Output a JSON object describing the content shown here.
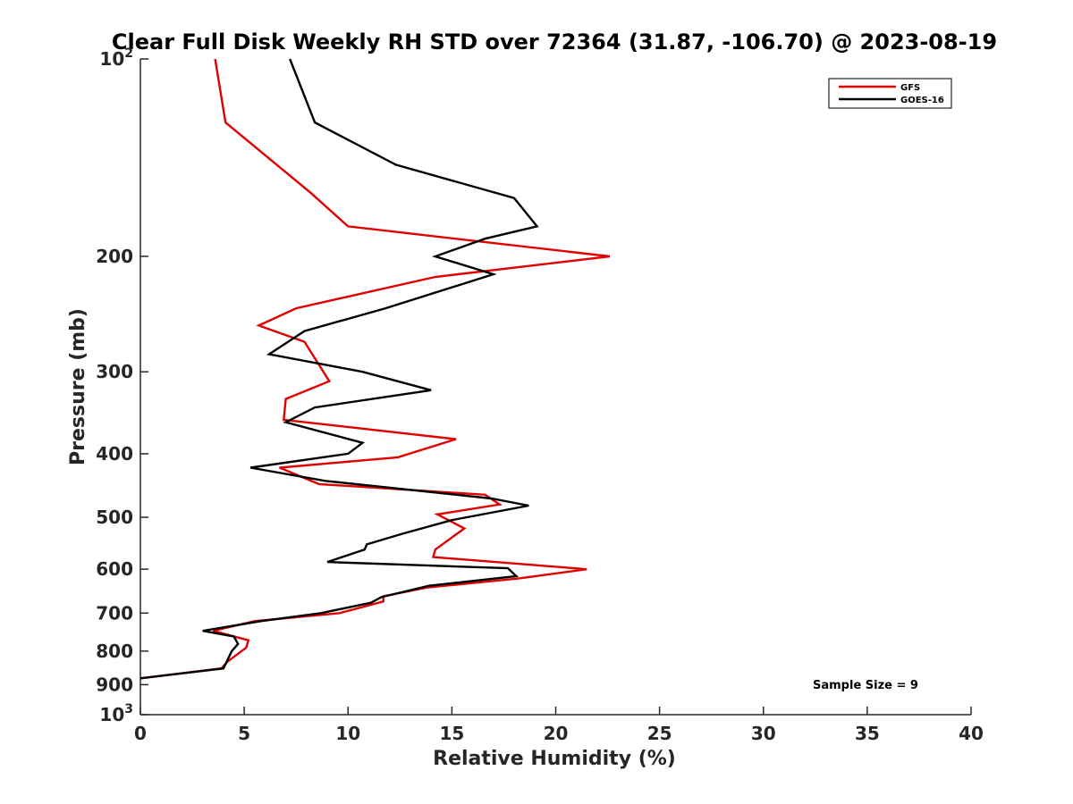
{
  "chart_data": {
    "type": "line",
    "title": "Clear Full Disk Weekly RH STD over 72364 (31.87, -106.70) @ 2023-08-19",
    "xlabel": "Relative Humidity (%)",
    "ylabel": "Pressure (mb)",
    "xlim": [
      0,
      40
    ],
    "ylim": [
      100,
      1000
    ],
    "y_scale": "log",
    "y_reversed": true,
    "x_ticks": [
      "0",
      "5",
      "10",
      "15",
      "20",
      "25",
      "30",
      "35",
      "40"
    ],
    "y_ticks": [
      {
        "value": 100,
        "base": "10",
        "exp": "2"
      },
      {
        "value": 200,
        "label": "200"
      },
      {
        "value": 300,
        "label": "300"
      },
      {
        "value": 400,
        "label": "400"
      },
      {
        "value": 500,
        "label": "500"
      },
      {
        "value": 600,
        "label": "600"
      },
      {
        "value": 700,
        "label": "700"
      },
      {
        "value": 800,
        "label": "800"
      },
      {
        "value": 900,
        "label": "900"
      },
      {
        "value": 1000,
        "base": "10",
        "exp": "3"
      }
    ],
    "legend_position": "top-right",
    "annotation": "Sample Size = 9",
    "series": [
      {
        "name": "GFS",
        "color": "#e00000",
        "points": [
          [
            3.6,
            100
          ],
          [
            4.1,
            125
          ],
          [
            8.2,
            160
          ],
          [
            10.0,
            180
          ],
          [
            22.6,
            200
          ],
          [
            14.2,
            215
          ],
          [
            7.5,
            240
          ],
          [
            5.7,
            255
          ],
          [
            7.9,
            270
          ],
          [
            9.1,
            310
          ],
          [
            7.0,
            330
          ],
          [
            6.9,
            355
          ],
          [
            15.2,
            380
          ],
          [
            12.4,
            405
          ],
          [
            6.7,
            420
          ],
          [
            8.6,
            445
          ],
          [
            16.6,
            462
          ],
          [
            17.3,
            478
          ],
          [
            14.3,
            495
          ],
          [
            15.6,
            520
          ],
          [
            14.2,
            560
          ],
          [
            14.1,
            575
          ],
          [
            21.5,
            600
          ],
          [
            18.2,
            620
          ],
          [
            13.8,
            640
          ],
          [
            11.7,
            660
          ],
          [
            11.7,
            672
          ],
          [
            9.6,
            700
          ],
          [
            5.5,
            720
          ],
          [
            3.5,
            745
          ],
          [
            5.2,
            770
          ],
          [
            5.1,
            790
          ],
          [
            4.2,
            830
          ],
          [
            3.9,
            850
          ],
          [
            0.0,
            880
          ]
        ]
      },
      {
        "name": "GOES-16",
        "color": "#000000",
        "points": [
          [
            7.2,
            100
          ],
          [
            8.4,
            125
          ],
          [
            12.3,
            145
          ],
          [
            18.0,
            163
          ],
          [
            19.1,
            180
          ],
          [
            16.6,
            188
          ],
          [
            14.2,
            200
          ],
          [
            17.0,
            213
          ],
          [
            11.8,
            240
          ],
          [
            7.9,
            260
          ],
          [
            6.2,
            282
          ],
          [
            10.7,
            300
          ],
          [
            14.0,
            320
          ],
          [
            8.4,
            340
          ],
          [
            7.0,
            358
          ],
          [
            10.7,
            385
          ],
          [
            10.0,
            400
          ],
          [
            5.3,
            420
          ],
          [
            8.9,
            440
          ],
          [
            16.9,
            468
          ],
          [
            18.7,
            480
          ],
          [
            15.0,
            505
          ],
          [
            12.6,
            530
          ],
          [
            10.9,
            550
          ],
          [
            10.8,
            560
          ],
          [
            9.0,
            585
          ],
          [
            17.7,
            598
          ],
          [
            18.1,
            615
          ],
          [
            13.9,
            636
          ],
          [
            11.6,
            662
          ],
          [
            11.1,
            675
          ],
          [
            8.7,
            700
          ],
          [
            5.8,
            720
          ],
          [
            3.0,
            745
          ],
          [
            4.5,
            760
          ],
          [
            4.7,
            780
          ],
          [
            4.4,
            800
          ],
          [
            4.0,
            850
          ],
          [
            0.0,
            880
          ]
        ]
      }
    ]
  }
}
